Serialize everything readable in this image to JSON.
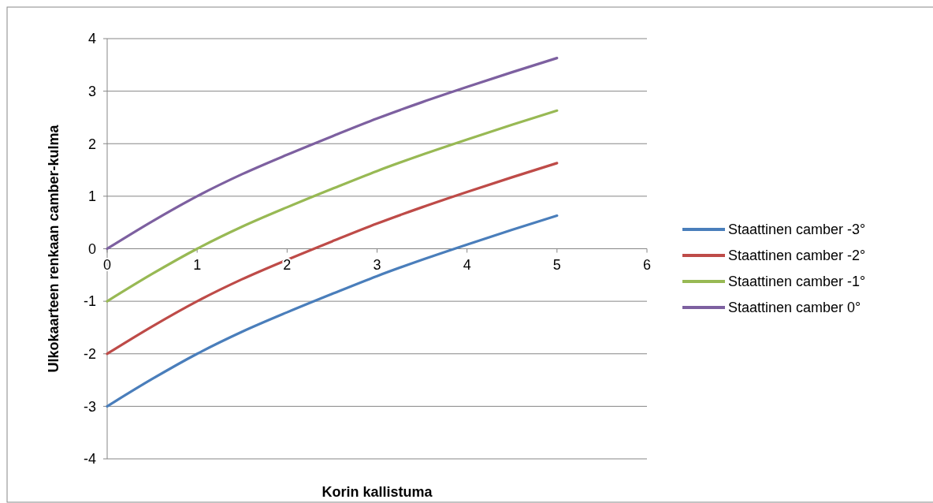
{
  "chart_data": {
    "type": "line",
    "xlabel": "Korin kallistuma",
    "ylabel": "Ulkokaarteen renkaan camber-kulma",
    "x": [
      0,
      0.5,
      1,
      1.5,
      2,
      2.5,
      3,
      3.5,
      4,
      4.5,
      5
    ],
    "series": [
      {
        "name": "Staattinen camber -3°",
        "color": "#4a7ebb",
        "values": [
          -3,
          -2.48,
          -2,
          -1.58,
          -1.21,
          -0.86,
          -0.52,
          -0.21,
          0.08,
          0.36,
          0.63
        ]
      },
      {
        "name": "Staattinen camber -2°",
        "color": "#be4b48",
        "values": [
          -2,
          -1.48,
          -1,
          -0.58,
          -0.21,
          0.14,
          0.48,
          0.79,
          1.08,
          1.36,
          1.63
        ]
      },
      {
        "name": "Staattinen camber -1°",
        "color": "#98b954",
        "values": [
          -1,
          -0.48,
          0,
          0.42,
          0.79,
          1.14,
          1.48,
          1.79,
          2.08,
          2.36,
          2.63
        ]
      },
      {
        "name": "Staattinen camber 0°",
        "color": "#7d60a0",
        "values": [
          0,
          0.52,
          1,
          1.42,
          1.79,
          2.14,
          2.48,
          2.79,
          3.08,
          3.36,
          3.63
        ]
      }
    ],
    "xlim": [
      0,
      6
    ],
    "xticks": [
      0,
      1,
      2,
      3,
      4,
      5,
      6
    ],
    "ylim": [
      -4,
      4
    ],
    "yticks": [
      -4,
      -3,
      -2,
      -1,
      0,
      1,
      2,
      3,
      4
    ],
    "grid": "y",
    "legend": "right",
    "marker": "none",
    "line_style": "solid"
  }
}
